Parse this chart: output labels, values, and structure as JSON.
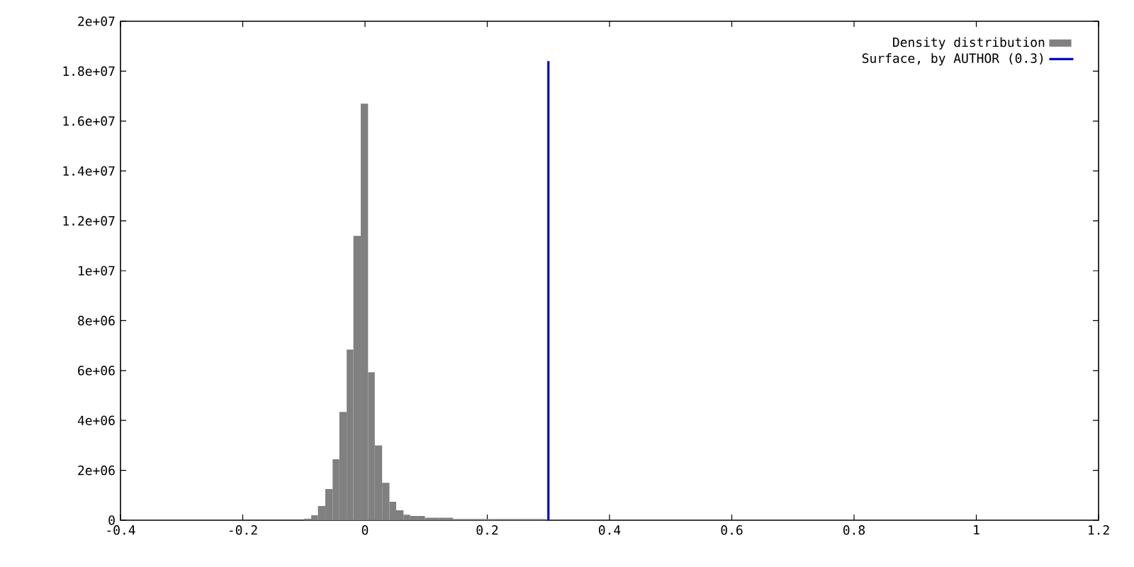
{
  "chart_data": {
    "type": "histogram",
    "bins": [
      -0.1,
      -0.088,
      -0.077,
      -0.065,
      -0.053,
      -0.042,
      -0.03,
      -0.019,
      -0.007,
      0.005,
      0.016,
      0.028,
      0.04,
      0.051,
      0.063,
      0.074,
      0.086,
      0.098,
      0.109,
      0.121,
      0.133,
      0.144,
      0.156,
      0.167,
      0.179,
      0.191,
      0.202,
      0.214,
      0.226,
      0.237,
      0.249,
      0.26,
      0.272,
      0.284,
      0.295
    ],
    "series": [
      {
        "name": "Density distribution",
        "color": "#808080",
        "values": [
          60000,
          200000,
          570000,
          1250000,
          2440000,
          4340000,
          6840000,
          11400000,
          16700000,
          5930000,
          3000000,
          1500000,
          740000,
          400000,
          220000,
          170000,
          170000,
          100000,
          100000,
          100000,
          100000,
          50000,
          50000,
          50000,
          50000,
          50000,
          50000,
          50000,
          50000,
          50000,
          50000,
          50000,
          50000,
          50000
        ]
      },
      {
        "type": "line",
        "name": "Surface, by AUTHOR (0.3)",
        "color": "#0000cc",
        "x": [
          0.3,
          0.3
        ],
        "values": [
          0,
          18400000
        ]
      }
    ],
    "xlim": [
      -0.4,
      1.2
    ],
    "xticks": [
      -0.4,
      -0.2,
      0,
      0.2,
      0.4,
      0.6,
      0.8,
      1,
      1.2
    ],
    "ylim": [
      0,
      20000000
    ],
    "yticks": [
      0,
      {
        "value": 2000000,
        "label": "2e+06"
      },
      {
        "value": 4000000,
        "label": "4e+06"
      },
      {
        "value": 6000000,
        "label": "6e+06"
      },
      {
        "value": 8000000,
        "label": "8e+06"
      },
      {
        "value": 10000000,
        "label": "1e+07"
      },
      {
        "value": 12000000,
        "label": "1.2e+07"
      },
      {
        "value": 14000000,
        "label": "1.4e+07"
      },
      {
        "value": 16000000,
        "label": "1.6e+07"
      },
      {
        "value": 18000000,
        "label": "1.8e+07"
      },
      {
        "value": 20000000,
        "label": "2e+07"
      }
    ],
    "grid": false,
    "legend": "top right"
  }
}
